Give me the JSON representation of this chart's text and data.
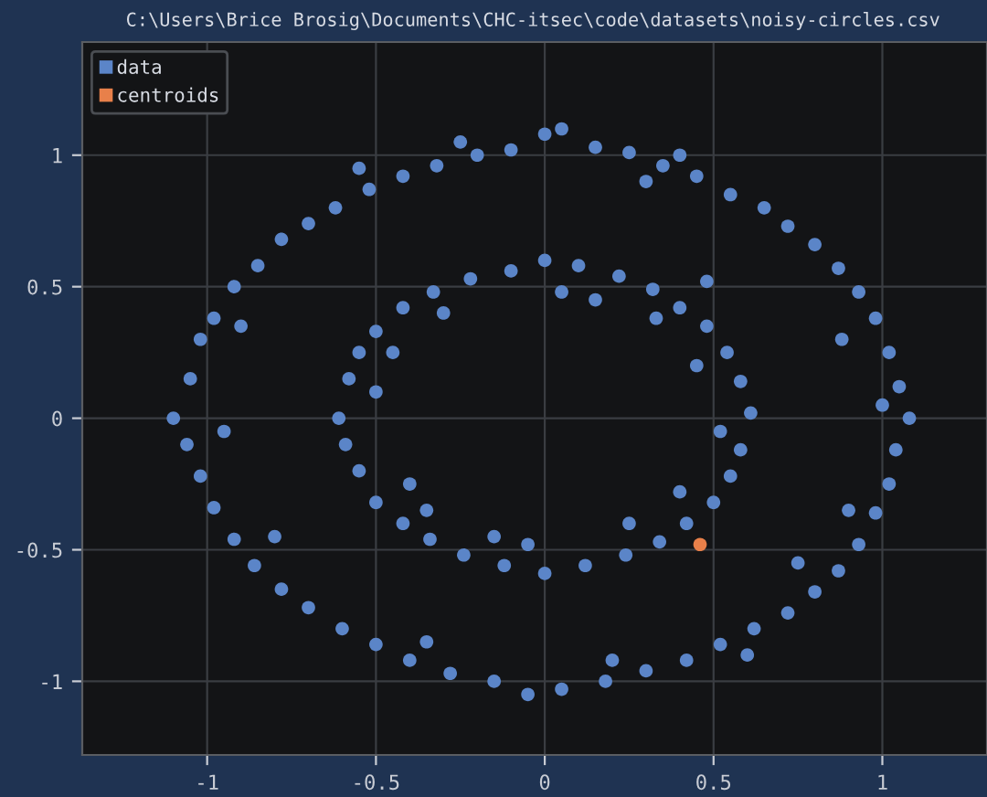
{
  "chart_data": {
    "type": "scatter",
    "title": "C:\\Users\\Brice Brosig\\Documents\\CHC-itsec\\code\\datasets\\noisy-circles.csv",
    "series": [
      {
        "name": "data",
        "color": "#5b85c8",
        "x": [
          -1.1,
          -1.05,
          -1.02,
          -0.98,
          -0.92,
          -0.85,
          -0.78,
          -0.7,
          -0.62,
          -0.52,
          -0.42,
          -0.32,
          -0.2,
          -0.1,
          0.0,
          0.05,
          0.15,
          0.25,
          0.35,
          0.45,
          0.55,
          0.65,
          0.72,
          0.8,
          0.87,
          0.93,
          0.98,
          1.02,
          1.05,
          1.08,
          1.04,
          1.02,
          0.98,
          0.93,
          0.87,
          0.8,
          0.72,
          0.62,
          0.52,
          0.42,
          0.3,
          0.18,
          0.05,
          -0.05,
          -0.15,
          -0.28,
          -0.4,
          -0.5,
          -0.6,
          -0.7,
          -0.78,
          -0.86,
          -0.92,
          -0.98,
          -1.02,
          -1.06,
          -0.9,
          0.88,
          -0.8,
          0.75,
          0.3,
          -0.35,
          0.4,
          -0.55,
          0.6,
          -0.95,
          1.0,
          0.9,
          -0.25,
          0.2,
          -0.61,
          -0.58,
          -0.55,
          -0.5,
          -0.42,
          -0.33,
          -0.22,
          -0.1,
          0.0,
          0.1,
          0.22,
          0.32,
          0.4,
          0.48,
          0.54,
          0.58,
          0.61,
          0.58,
          0.55,
          0.5,
          0.42,
          0.34,
          0.24,
          0.12,
          0.0,
          -0.12,
          -0.24,
          -0.34,
          -0.42,
          -0.5,
          -0.55,
          -0.59,
          -0.45,
          0.45,
          -0.4,
          0.4,
          0.15,
          -0.15,
          -0.5,
          0.52,
          0.05,
          -0.05,
          0.48,
          -0.3,
          0.25,
          0.33,
          -0.35
        ],
        "values": [
          0.0,
          0.15,
          0.3,
          0.38,
          0.5,
          0.58,
          0.68,
          0.74,
          0.8,
          0.87,
          0.92,
          0.96,
          1.0,
          1.02,
          1.08,
          1.1,
          1.03,
          1.01,
          0.96,
          0.92,
          0.85,
          0.8,
          0.73,
          0.66,
          0.57,
          0.48,
          0.38,
          0.25,
          0.12,
          0.0,
          -0.12,
          -0.25,
          -0.36,
          -0.48,
          -0.58,
          -0.66,
          -0.74,
          -0.8,
          -0.86,
          -0.92,
          -0.96,
          -1.0,
          -1.03,
          -1.05,
          -1.0,
          -0.97,
          -0.92,
          -0.86,
          -0.8,
          -0.72,
          -0.65,
          -0.56,
          -0.46,
          -0.34,
          -0.22,
          -0.1,
          0.35,
          0.3,
          -0.45,
          -0.55,
          0.9,
          -0.85,
          1.0,
          0.95,
          -0.9,
          -0.05,
          0.05,
          -0.35,
          1.05,
          -0.92,
          0.0,
          0.15,
          0.25,
          0.33,
          0.42,
          0.48,
          0.53,
          0.56,
          0.6,
          0.58,
          0.54,
          0.49,
          0.42,
          0.35,
          0.25,
          0.14,
          0.02,
          -0.12,
          -0.22,
          -0.32,
          -0.4,
          -0.47,
          -0.52,
          -0.56,
          -0.59,
          -0.56,
          -0.52,
          -0.46,
          -0.4,
          -0.32,
          -0.2,
          -0.1,
          0.25,
          0.2,
          -0.25,
          -0.28,
          0.45,
          -0.45,
          0.1,
          -0.05,
          0.48,
          -0.48,
          0.52,
          0.4,
          -0.4,
          0.38,
          -0.35
        ]
      },
      {
        "name": "centroids",
        "color": "#e8804a",
        "x": [
          0.46
        ],
        "values": [
          -0.48
        ]
      }
    ],
    "xlim": [
      -1.37,
      1.31
    ],
    "ylim": [
      -1.28,
      1.43
    ],
    "xticks": [
      -1,
      {
        "value": -0.5,
        "label": "-0.5"
      },
      0,
      0.5,
      1
    ],
    "yticks": [
      -1,
      {
        "value": -0.5,
        "label": "-0.5"
      },
      0,
      0.5,
      1
    ],
    "grid": true,
    "legend": "top left",
    "marker": "circle"
  }
}
